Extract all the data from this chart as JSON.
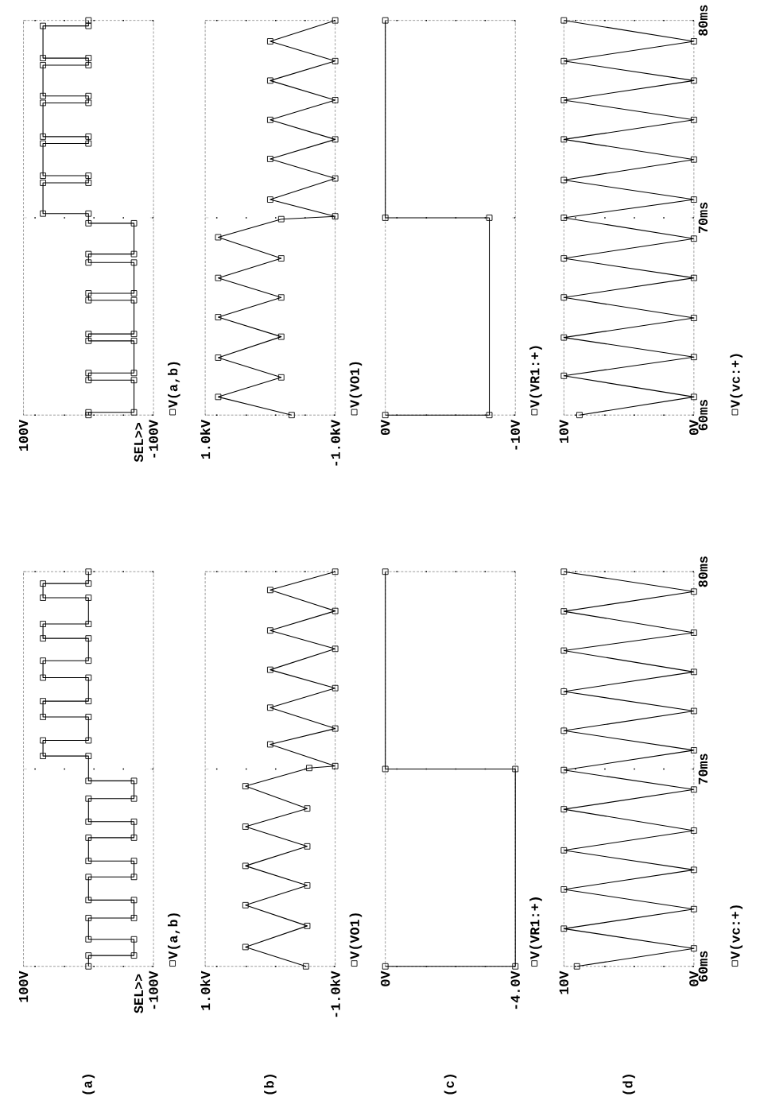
{
  "chart_data": [
    {
      "type": "line",
      "title": "(a)",
      "annotations": [
        "SEL>>"
      ],
      "ylim": [
        60,
        80
      ],
      "yticks": [
        60,
        70,
        80
      ],
      "xlim": [
        100,
        -100
      ],
      "xticks": [
        {
          "value": 100,
          "label": "100V"
        },
        {
          "value": -100,
          "label": "-100V"
        }
      ],
      "tick_labels": "x",
      "grid": "y",
      "legend": "bottom right",
      "marker": "square",
      "series": [
        {
          "name": "V(a,b)",
          "color": "#000000",
          "values": [
            60,
            60.55,
            60.55,
            61.37,
            61.37,
            62.45,
            62.45,
            63.36,
            63.36,
            64.53,
            64.53,
            65.34,
            65.34,
            66.52,
            66.52,
            67.33,
            67.33,
            68.5,
            68.5,
            69.4,
            69.4,
            70.66,
            70.66,
            71.45,
            71.45,
            72.64,
            72.64,
            73.44,
            73.44,
            74.63,
            74.63,
            75.49,
            75.49,
            76.62,
            76.62,
            77.35,
            77.35,
            78.68,
            78.68,
            79.4,
            79.4,
            80
          ],
          "x": [
            0,
            0,
            -70,
            -70,
            0,
            0,
            -70,
            -70,
            0,
            0,
            -70,
            -70,
            0,
            0,
            -70,
            -70,
            0,
            0,
            -70,
            -70,
            0,
            0,
            70,
            70,
            0,
            0,
            70,
            70,
            0,
            0,
            70,
            70,
            0,
            0,
            70,
            70,
            0,
            0,
            70,
            70,
            0,
            0
          ]
        }
      ]
    },
    {
      "type": "line",
      "title": "(b)",
      "ylim": [
        60,
        80
      ],
      "yticks": [
        60,
        70,
        80
      ],
      "xlim": [
        1,
        -1
      ],
      "xticks": [
        {
          "value": 1,
          "label": "1.0kV"
        },
        {
          "value": -1,
          "label": "-1.0kV"
        }
      ],
      "tick_labels": "x",
      "grid": "y",
      "legend": "bottom right",
      "marker": "square",
      "series": [
        {
          "name": "V(VO1)",
          "color": "#000000",
          "values": [
            60,
            60.98,
            62.05,
            63.1,
            64.1,
            65.09,
            66.08,
            67.08,
            68.0,
            69.13,
            70.05,
            70.15,
            71.25,
            72.05,
            73.11,
            74.1,
            75.03,
            76.09,
            77.02,
            78.01,
            79.07,
            80
          ],
          "x": [
            -0.55,
            0.38,
            -0.57,
            0.38,
            -0.57,
            0.38,
            -0.57,
            0.38,
            -0.57,
            0.38,
            -0.6,
            -1,
            0,
            -1,
            0,
            -1,
            0,
            -1,
            0,
            -1,
            0,
            -1
          ]
        }
      ]
    },
    {
      "type": "line",
      "title": "(c)",
      "ylim": [
        60,
        80
      ],
      "yticks": [
        60,
        70,
        80
      ],
      "xlim": [
        0,
        -4
      ],
      "xticks": [
        {
          "value": 0,
          "label": "0V"
        },
        {
          "value": -4,
          "label": "-4.0V"
        }
      ],
      "tick_labels": "x",
      "grid": "y",
      "legend": "bottom right",
      "marker": "square",
      "series": [
        {
          "name": "V(VR1:+)",
          "color": "#000000",
          "values": [
            60,
            60,
            70,
            70,
            80
          ],
          "x": [
            0,
            -4,
            -4,
            0,
            0
          ]
        }
      ]
    },
    {
      "type": "line",
      "title": "(d)",
      "ylim": [
        60,
        80
      ],
      "yticks": [
        {
          "value": 60,
          "label": "60ms"
        },
        {
          "value": 70,
          "label": "70ms"
        },
        {
          "value": 80,
          "label": "80ms"
        }
      ],
      "xlim": [
        10,
        0
      ],
      "xticks": [
        {
          "value": 10,
          "label": "10V"
        },
        {
          "value": 0,
          "label": "0V"
        }
      ],
      "grid": "y",
      "legend": "bottom right",
      "marker": "square",
      "series": [
        {
          "name": "V(vc:+)",
          "color": "#000000",
          "values": [
            60,
            60.91,
            61.91,
            62.9,
            63.9,
            64.89,
            65.88,
            66.88,
            67.96,
            68.96,
            69.95,
            70.95,
            71.94,
            72.94,
            73.93,
            74.92,
            76.0,
            76.91,
            77.99,
            78.99,
            80
          ],
          "x": [
            9,
            0,
            10,
            0,
            10,
            0,
            10,
            0,
            10,
            0,
            10,
            0,
            10,
            0,
            10,
            0,
            10,
            0,
            10,
            0,
            10
          ]
        }
      ]
    },
    {
      "type": "line",
      "annotations": [
        "SEL>>"
      ],
      "ylim": [
        60,
        80
      ],
      "yticks": [
        60,
        70,
        80
      ],
      "xlim": [
        100,
        -100
      ],
      "xticks": [
        {
          "value": 100,
          "label": "100V"
        },
        {
          "value": -100,
          "label": "-100V"
        }
      ],
      "tick_labels": "x",
      "grid": "y",
      "legend": "bottom right",
      "marker": "square",
      "series": [
        {
          "name": "V(a,b)",
          "color": "#000000",
          "values": [
            60,
            60.14,
            60.14,
            61.77,
            61.77,
            62.13,
            62.13,
            63.76,
            63.76,
            64.11,
            64.11,
            65.82,
            65.82,
            66.17,
            66.17,
            67.73,
            67.73,
            68.16,
            68.16,
            69.72,
            69.72,
            70.21,
            70.21,
            71.77,
            71.77,
            72.13,
            72.13,
            73.76,
            73.76,
            74.11,
            74.11,
            75.82,
            75.82,
            76.17,
            76.17,
            77.73,
            77.73,
            78.09,
            78.09,
            79.72,
            79.72,
            80
          ],
          "x": [
            0,
            0,
            -70,
            -70,
            0,
            0,
            -70,
            -70,
            0,
            0,
            -70,
            -70,
            0,
            0,
            -70,
            -70,
            0,
            0,
            -70,
            -70,
            0,
            0,
            70,
            70,
            0,
            0,
            70,
            70,
            0,
            0,
            70,
            70,
            0,
            0,
            70,
            70,
            0,
            0,
            70,
            70,
            0,
            0
          ]
        }
      ]
    },
    {
      "type": "line",
      "ylim": [
        60,
        80
      ],
      "yticks": [
        60,
        70,
        80
      ],
      "xlim": [
        1,
        -1
      ],
      "xticks": [
        {
          "value": 1,
          "label": "1.0kV"
        },
        {
          "value": -1,
          "label": "-1.0kV"
        }
      ],
      "tick_labels": "x",
      "grid": "y",
      "legend": "bottom right",
      "marker": "square",
      "series": [
        {
          "name": "V(VO1)",
          "color": "#000000",
          "values": [
            60,
            60.92,
            61.91,
            62.91,
            63.97,
            64.96,
            65.96,
            66.95,
            67.94,
            69.01,
            69.93,
            70.07,
            70.92,
            71.99,
            72.98,
            73.97,
            74.96,
            75.96,
            76.95,
            77.94,
            78.94,
            80
          ],
          "x": [
            -0.33,
            0.8,
            -0.17,
            0.8,
            -0.17,
            0.8,
            -0.17,
            0.8,
            -0.17,
            0.8,
            -0.17,
            -1,
            0,
            -1,
            0,
            -1,
            0,
            -1,
            0,
            -1,
            0,
            -1
          ]
        }
      ]
    },
    {
      "type": "line",
      "ylim": [
        60,
        80
      ],
      "yticks": [
        60,
        70,
        80
      ],
      "xlim": [
        0,
        -10
      ],
      "xticks": [
        {
          "value": 0,
          "label": "0V"
        },
        {
          "value": -10,
          "label": "-10V"
        }
      ],
      "tick_labels": "x",
      "grid": "y",
      "legend": "bottom right",
      "marker": "square",
      "series": [
        {
          "name": "V(VR1:+)",
          "color": "#000000",
          "values": [
            60,
            60,
            70,
            70,
            80
          ],
          "x": [
            0,
            -8,
            -8,
            0,
            0
          ]
        }
      ]
    },
    {
      "type": "line",
      "ylim": [
        60,
        80
      ],
      "yticks": [
        {
          "value": 60,
          "label": "60ms"
        },
        {
          "value": 70,
          "label": "70ms"
        },
        {
          "value": 80,
          "label": "80ms"
        }
      ],
      "xlim": [
        10,
        0
      ],
      "xticks": [
        {
          "value": 10,
          "label": "10V"
        },
        {
          "value": 0,
          "label": "0V"
        }
      ],
      "grid": "y",
      "legend": "bottom right",
      "marker": "square",
      "series": [
        {
          "name": "V(vc:+)",
          "color": "#000000",
          "values": [
            60,
            60.92,
            61.99,
            62.94,
            63.93,
            64.92,
            65.96,
            66.95,
            67.94,
            68.94,
            70.0,
            70.92,
            71.91,
            72.95,
            73.97,
            74.96,
            75.96,
            76.95,
            77.94,
            78.94,
            80
          ],
          "x": [
            8.8,
            0,
            10,
            0,
            10,
            0,
            10,
            0,
            10,
            0,
            10,
            0,
            10,
            0,
            10,
            0,
            10,
            0,
            10,
            0,
            10
          ]
        }
      ]
    }
  ]
}
